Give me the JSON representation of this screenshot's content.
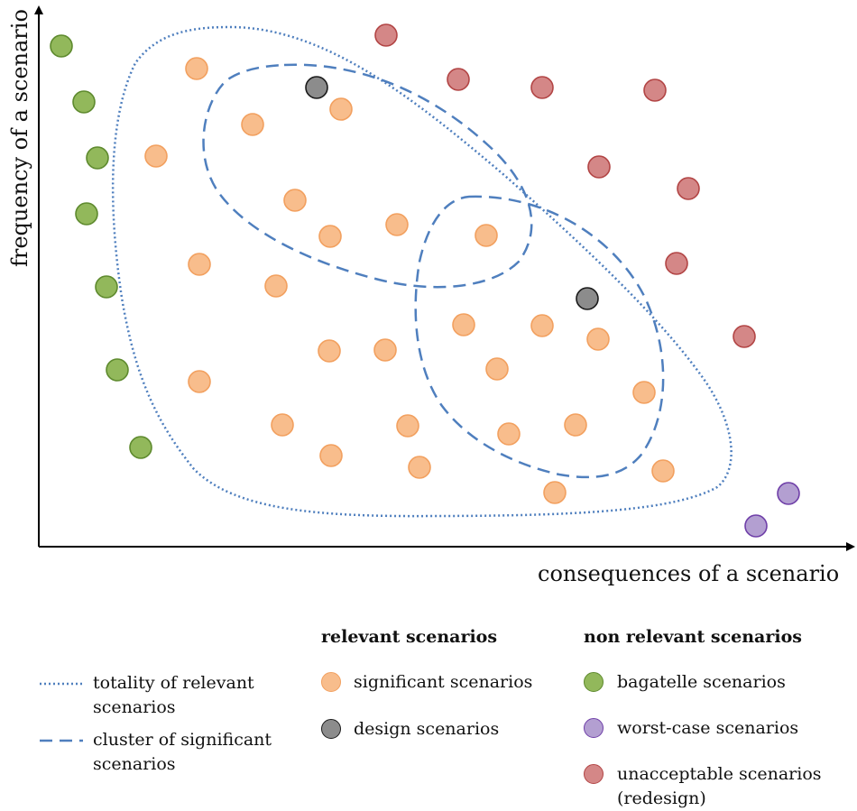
{
  "axes": {
    "x_label": "consequences of a scenario",
    "y_label": "frequency of a scenario"
  },
  "colors": {
    "significant_fill": "#F8BD8C",
    "significant_stroke": "#F2A05F",
    "design_fill": "#8C8C8C",
    "design_stroke": "#1a1a1a",
    "bagatelle_fill": "#92B85B",
    "bagatelle_stroke": "#5E8A2E",
    "worst_fill": "#B39FD1",
    "worst_stroke": "#6F3FA8",
    "unacceptable_fill": "#D48787",
    "unacceptable_stroke": "#B24545",
    "outline": "#4F7FBE"
  },
  "legend": {
    "relevant_heading": "relevant scenarios",
    "non_relevant_heading": "non relevant scenarios",
    "totality": "totality of relevant scenarios",
    "cluster": "cluster of significant scenarios",
    "significant": "significant scenarios",
    "design": "design scenarios",
    "bagatelle": "bagatelle scenarios",
    "worst_case": "worst-case scenarios",
    "unacceptable": "unacceptable scenarios (redesign)"
  }
}
